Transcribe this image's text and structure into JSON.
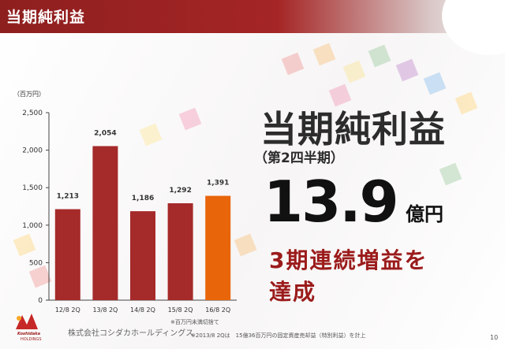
{
  "header": {
    "title": "当期純利益"
  },
  "highlight": {
    "title": "当期純利益",
    "subtitle": "（第2四半期）",
    "value": "13.9",
    "unit": "億円",
    "achievement_line1": "3期連続増益を",
    "achievement_line2": "達成"
  },
  "notes": {
    "rounding": "※百万円未満切捨て",
    "footnote": "※2013/8 2Qは　15億36百万円の固定資産売却益（特別利益）を計上"
  },
  "company": {
    "logo_text": "Koshidaka",
    "logo_sub": "HOLDINGS",
    "name": "株式会社コシダカホールディングス"
  },
  "page_number": "10",
  "colors": {
    "header": "#8e1f1f",
    "bar": "#a52a2a",
    "bar_highlight": "#e8650a",
    "accent_text": "#9b1b1b"
  },
  "chart_data": {
    "type": "bar",
    "ylabel": "（百万円）",
    "categories": [
      "12/8 2Q",
      "13/8 2Q",
      "14/8 2Q",
      "15/8 2Q",
      "16/8 2Q"
    ],
    "values": [
      1213,
      2054,
      1186,
      1292,
      1391
    ],
    "value_labels": [
      "1,213",
      "2,054",
      "1,186",
      "1,292",
      "1,391"
    ],
    "highlight_index": 4,
    "ylim": [
      0,
      2500
    ],
    "yticks": [
      0,
      500,
      1000,
      1500,
      2000,
      2500
    ],
    "ytick_labels": [
      "0",
      "500",
      "1,000",
      "1,500",
      "2,000",
      "2,500"
    ],
    "grid": false
  }
}
